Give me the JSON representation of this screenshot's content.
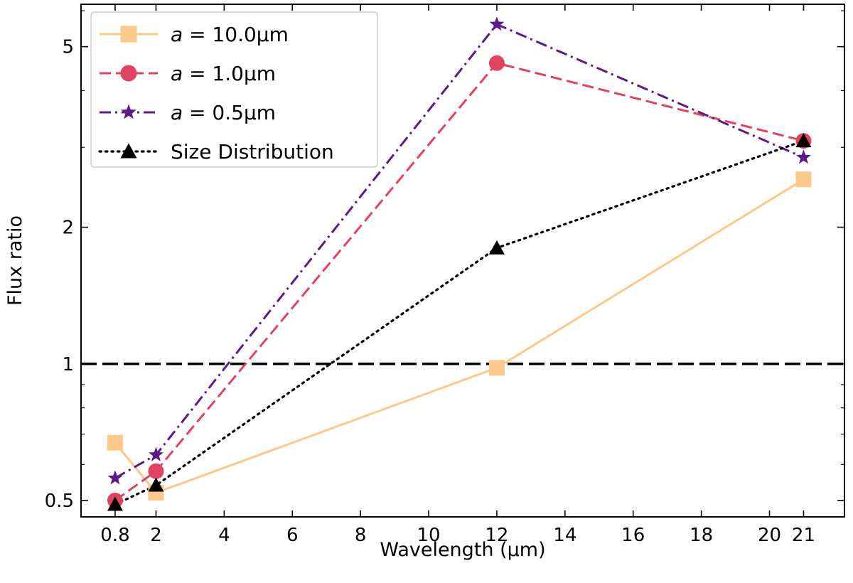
{
  "chart_data": {
    "type": "line",
    "title": "",
    "xlabel": "Wavelength (μm)",
    "ylabel": "Flux ratio",
    "xlim": [
      -0.2,
      22.2
    ],
    "ylim": [
      0.46,
      6.2
    ],
    "yscale": "log",
    "x": [
      0.8,
      2,
      12,
      21
    ],
    "x_ticks": [
      0.8,
      2,
      4,
      6,
      8,
      10,
      12,
      14,
      16,
      18,
      20,
      21
    ],
    "x_tick_labels": [
      "0.8",
      "2",
      "4",
      "6",
      "8",
      "10",
      "12",
      "14",
      "16",
      "18",
      "20",
      "21"
    ],
    "y_ticks": [
      0.5,
      1,
      2,
      5
    ],
    "y_tick_labels": [
      "0.5",
      "1",
      "2",
      "5"
    ],
    "y_minor_ticks": [
      0.6,
      0.7,
      0.8,
      0.9,
      3,
      4,
      6
    ],
    "reference_line": {
      "y": 1,
      "style": "dashed",
      "color": "#000000"
    },
    "legend_position": "upper-left",
    "series": [
      {
        "name": "a = 10.0μm",
        "legend_var": "a",
        "legend_rest": " = 10.0μm",
        "color": "#fcc98a",
        "dash": "solid",
        "marker": "square",
        "values": [
          0.67,
          0.52,
          0.98,
          2.55
        ]
      },
      {
        "name": "a = 1.0μm",
        "legend_var": "a",
        "legend_rest": " = 1.0μm",
        "color": "#e0435f",
        "dash": "dashed",
        "marker": "circle",
        "values": [
          0.5,
          0.58,
          4.6,
          3.1
        ]
      },
      {
        "name": "a = 0.5μm",
        "legend_var": "a",
        "legend_rest": " = 0.5μm",
        "color": "#5b1a8a",
        "dash": "dashdot",
        "marker": "star",
        "values": [
          0.56,
          0.63,
          5.6,
          2.85
        ]
      },
      {
        "name": "Size Distribution",
        "legend_var": "",
        "legend_rest": "Size Distribution",
        "color": "#000000",
        "dash": "dotted",
        "marker": "triangle",
        "values": [
          0.49,
          0.54,
          1.8,
          3.1
        ]
      }
    ]
  }
}
